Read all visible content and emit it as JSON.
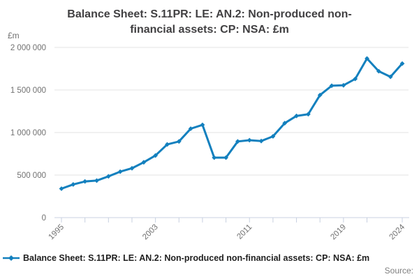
{
  "page": {
    "title_line1": "Balance Sheet: S.11PR: LE: AN.2: Non-produced non-",
    "title_line2": "financial assets: CP: NSA: £m",
    "source_label": "Source:"
  },
  "legend": {
    "label": "Balance Sheet: S.11PR: LE: AN.2: Non-produced non-financial assets: CP: NSA: £m"
  },
  "colors": {
    "series_blue": "#1380be",
    "title_text": "#414042",
    "tick_text": "#707070",
    "gridline": "#e3e3e3",
    "axis_line": "#c8d0e0",
    "legend_text": "#1f1f1f",
    "source_text": "#7f7f7f"
  },
  "chart_data": {
    "type": "line",
    "title": "Balance Sheet: S.11PR: LE: AN.2: Non-produced non-financial assets: CP: NSA: £m",
    "unit_label": "£m",
    "xlabel": "",
    "ylabel": "£m",
    "ylim": [
      0,
      2000000
    ],
    "grid": "horizontal",
    "legend_position": "bottom",
    "x": [
      1995,
      1996,
      1997,
      1998,
      1999,
      2000,
      2001,
      2002,
      2003,
      2004,
      2005,
      2006,
      2007,
      2008,
      2009,
      2010,
      2011,
      2012,
      2013,
      2014,
      2015,
      2016,
      2017,
      2018,
      2019,
      2020,
      2021,
      2022,
      2023,
      2024
    ],
    "series": [
      {
        "name": "Balance Sheet: S.11PR: LE: AN.2: Non-produced non-financial assets: CP: NSA: £m",
        "values": [
          340000,
          390000,
          425000,
          435000,
          485000,
          540000,
          580000,
          650000,
          730000,
          860000,
          895000,
          1045000,
          1090000,
          705000,
          705000,
          895000,
          910000,
          900000,
          955000,
          1110000,
          1195000,
          1215000,
          1440000,
          1550000,
          1555000,
          1630000,
          1870000,
          1720000,
          1655000,
          1810000
        ]
      }
    ],
    "y_ticks": [
      0,
      500000,
      1000000,
      1500000,
      2000000
    ],
    "y_tick_labels": [
      "0",
      "500 000",
      "1 000 000",
      "1 500 000",
      "2 000 000"
    ],
    "x_ticks": [
      1995,
      1997,
      1999,
      2001,
      2003,
      2005,
      2007,
      2009,
      2011,
      2013,
      2015,
      2017,
      2019,
      2021,
      2024
    ],
    "x_labeled_ticks": [
      1995,
      2003,
      2011,
      2019,
      2024
    ]
  }
}
